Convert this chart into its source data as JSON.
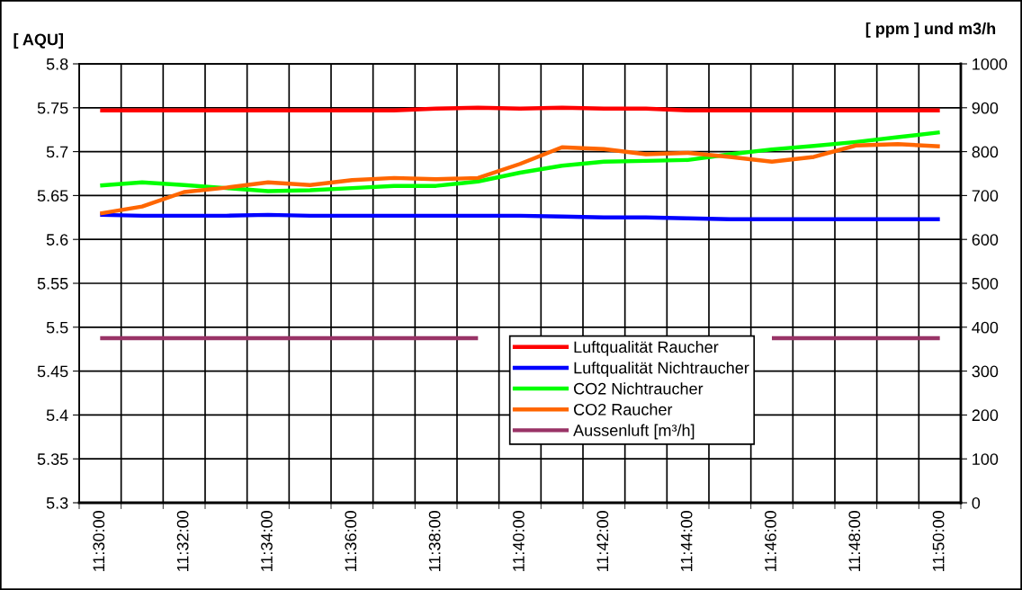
{
  "chart_data": {
    "type": "line",
    "ylabel": "[ AQU]",
    "y2label": "[ ppm ] und m3/h",
    "categories": [
      "11:30:00",
      null,
      "11:32:00",
      null,
      "11:34:00",
      null,
      "11:36:00",
      null,
      "11:38:00",
      null,
      "11:40:00",
      null,
      "11:42:00",
      null,
      "11:44:00",
      null,
      "11:46:00",
      null,
      "11:48:00",
      null,
      "11:50:00"
    ],
    "ylim": [
      5.3,
      5.8
    ],
    "yticks": [
      {
        "value": 5.3,
        "label": "5.3"
      },
      {
        "value": 5.35,
        "label": "5.35"
      },
      {
        "value": 5.4,
        "label": "5.4"
      },
      {
        "value": 5.45,
        "label": "5.45"
      },
      {
        "value": 5.5,
        "label": "5.5"
      },
      {
        "value": 5.55,
        "label": "5.55"
      },
      {
        "value": 5.6,
        "label": "5.6"
      },
      {
        "value": 5.65,
        "label": "5.65"
      },
      {
        "value": 5.7,
        "label": "5.7"
      },
      {
        "value": 5.75,
        "label": "5.75"
      },
      {
        "value": 5.8,
        "label": "5.8"
      }
    ],
    "y2lim": [
      0,
      1000
    ],
    "y2ticks": [
      0,
      100,
      200,
      300,
      400,
      500,
      600,
      700,
      800,
      900,
      1000
    ],
    "grid": true,
    "legend": "bottom",
    "line_style": "solid",
    "series": [
      {
        "name": "Luftqualität Raucher",
        "color": "#ff0000",
        "values": [
          5.747,
          5.747,
          5.747,
          5.747,
          5.747,
          5.747,
          5.747,
          5.747,
          5.749,
          5.75,
          5.749,
          5.75,
          5.749,
          5.749,
          5.747,
          5.747,
          5.747,
          5.747,
          5.747,
          5.747,
          5.747
        ]
      },
      {
        "name": "Luftqualität Nichtraucher",
        "color": "#0000ff",
        "values": [
          5.628,
          5.627,
          5.627,
          5.627,
          5.628,
          5.627,
          5.627,
          5.627,
          5.627,
          5.627,
          5.627,
          5.626,
          5.625,
          5.625,
          5.624,
          5.623,
          5.623,
          5.623,
          5.623,
          5.623,
          5.623
        ]
      },
      {
        "name": "CO2 Nichtraucher",
        "color": "#00ff00",
        "axis": "y2",
        "values": [
          723,
          730,
          724,
          717,
          710,
          712,
          717,
          722,
          722,
          732,
          752,
          768,
          777,
          779,
          781,
          794,
          805,
          813,
          822,
          833,
          844
        ]
      },
      {
        "name": "CO2 Raucher",
        "color": "#ff6600",
        "axis": "y2",
        "values": [
          659,
          675,
          708,
          718,
          730,
          724,
          735,
          740,
          737,
          740,
          772,
          810,
          806,
          794,
          797,
          788,
          777,
          788,
          814,
          817,
          812
        ]
      },
      {
        "name": "Aussenluft [m³/h]",
        "color": "#993366",
        "axis": "y2",
        "values": [
          375,
          375,
          375,
          375,
          375,
          375,
          375,
          375,
          375,
          375,
          null,
          null,
          null,
          null,
          null,
          null,
          375,
          375,
          375,
          375,
          375
        ]
      }
    ]
  }
}
